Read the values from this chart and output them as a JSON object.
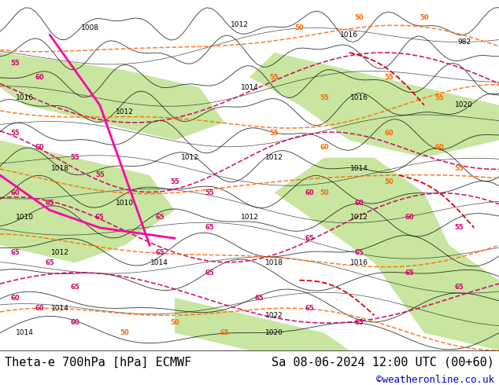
{
  "title_left": "Theta-e 700hPa [hPa] ECMWF",
  "title_right": "Sa 08-06-2024 12:00 UTC (00+60)",
  "credit": "©weatheronline.co.uk",
  "bg_color": "#ffffff",
  "figsize": [
    6.34,
    4.9
  ],
  "dpi": 100,
  "title_fontsize": 11,
  "credit_fontsize": 9,
  "credit_color": "#0000cc"
}
